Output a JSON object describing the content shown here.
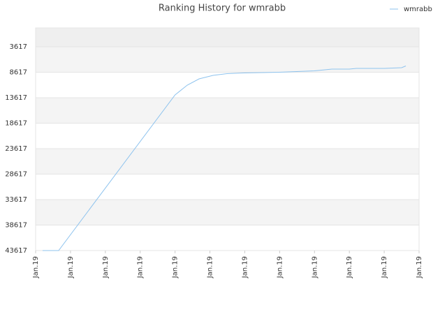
{
  "chart_data": {
    "type": "line",
    "title": "Ranking History for wmrabb",
    "series": [
      {
        "name": "wmrabb",
        "color": "#8ec3ee",
        "x": [
          0.2,
          0.66,
          4.0,
          4.35,
          4.69,
          5.09,
          5.49,
          5.99,
          6.99,
          8.0,
          8.5,
          9.0,
          9.2,
          10.0,
          10.5,
          10.62
        ],
        "values": [
          43617,
          43617,
          13069,
          11151,
          9918,
          9233,
          8891,
          8754,
          8617,
          8343,
          8000,
          8000,
          7864,
          7864,
          7727,
          7384
        ]
      }
    ],
    "xlim": [
      0,
      11
    ],
    "xticks": [
      {
        "value": 0,
        "label": "Jan.19"
      },
      {
        "value": 1,
        "label": "Jan.19"
      },
      {
        "value": 2,
        "label": "Jan.19"
      },
      {
        "value": 3,
        "label": "Jan.19"
      },
      {
        "value": 4,
        "label": "Jan.19"
      },
      {
        "value": 5,
        "label": "Jan.19"
      },
      {
        "value": 6,
        "label": "Jan.19"
      },
      {
        "value": 7,
        "label": "Jan.19"
      },
      {
        "value": 8,
        "label": "Jan.19"
      },
      {
        "value": 9,
        "label": "Jan.19"
      },
      {
        "value": 10,
        "label": "Jan.19"
      },
      {
        "value": 11,
        "label": "Jan.19"
      }
    ],
    "ylim": [
      43617,
      -82
    ],
    "yticks": [
      3617,
      8617,
      13617,
      18617,
      23617,
      28617,
      33617,
      38617,
      43617
    ],
    "grid": true,
    "legend": "top-right"
  }
}
